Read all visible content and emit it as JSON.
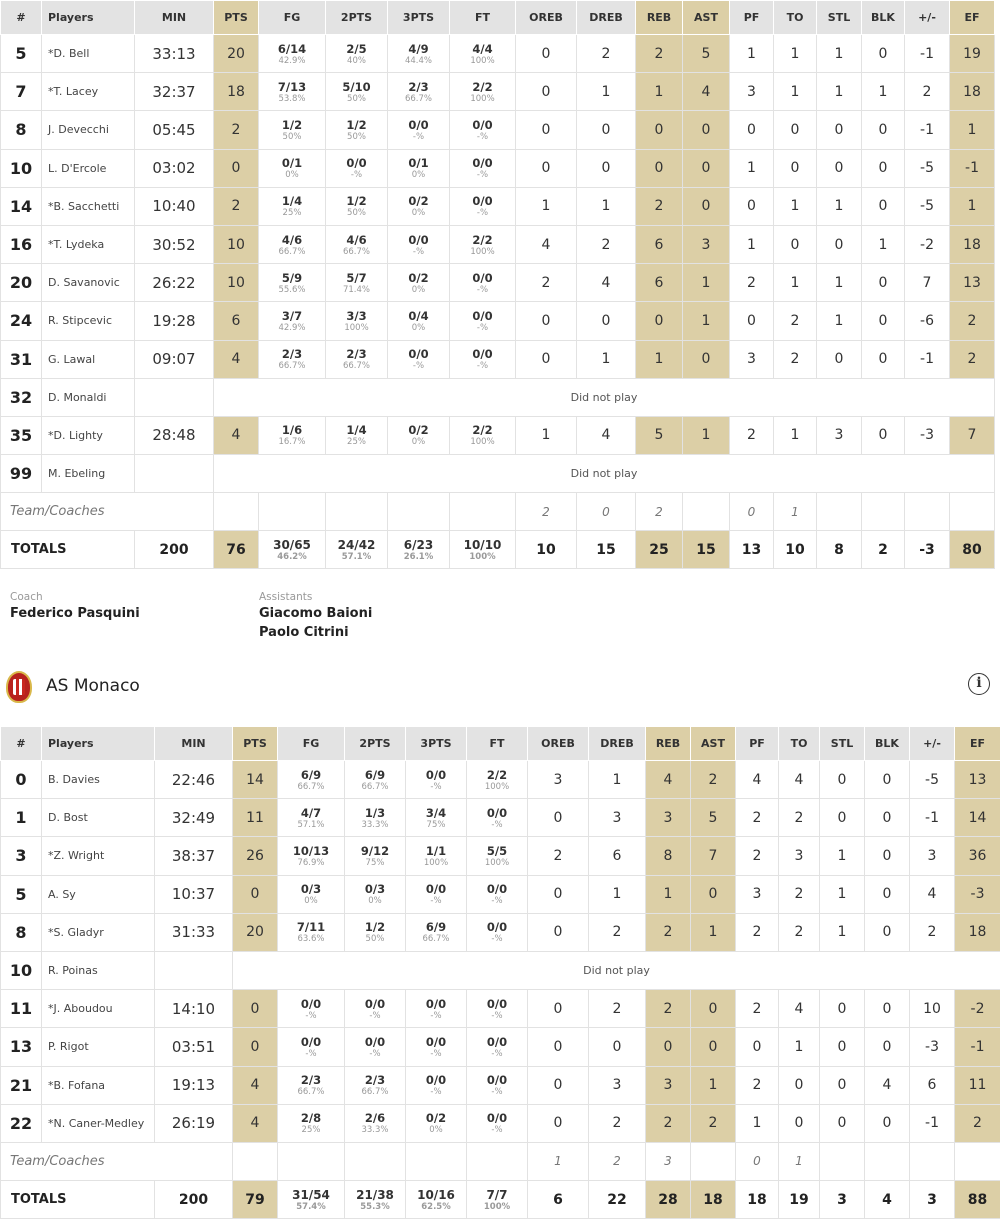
{
  "headers": [
    "#",
    "Players",
    "MIN",
    "PTS",
    "FG",
    "2PTS",
    "3PTS",
    "FT",
    "OREB",
    "DREB",
    "REB",
    "AST",
    "PF",
    "TO",
    "STL",
    "BLK",
    "+/-",
    "EF"
  ],
  "team1": {
    "players": [
      {
        "no": "5",
        "name": "*D. Bell",
        "min": "33:13",
        "pts": "20",
        "fg": [
          "6/14",
          "42.9%"
        ],
        "two": [
          "2/5",
          "40%"
        ],
        "three": [
          "4/9",
          "44.4%"
        ],
        "ft": [
          "4/4",
          "100%"
        ],
        "oreb": "0",
        "dreb": "2",
        "reb": "2",
        "ast": "5",
        "pf": "1",
        "to": "1",
        "stl": "1",
        "blk": "0",
        "pm": "-1",
        "ef": "19"
      },
      {
        "no": "7",
        "name": "*T. Lacey",
        "min": "32:37",
        "pts": "18",
        "fg": [
          "7/13",
          "53.8%"
        ],
        "two": [
          "5/10",
          "50%"
        ],
        "three": [
          "2/3",
          "66.7%"
        ],
        "ft": [
          "2/2",
          "100%"
        ],
        "oreb": "0",
        "dreb": "1",
        "reb": "1",
        "ast": "4",
        "pf": "3",
        "to": "1",
        "stl": "1",
        "blk": "1",
        "pm": "2",
        "ef": "18"
      },
      {
        "no": "8",
        "name": "J. Devecchi",
        "min": "05:45",
        "pts": "2",
        "fg": [
          "1/2",
          "50%"
        ],
        "two": [
          "1/2",
          "50%"
        ],
        "three": [
          "0/0",
          "-%"
        ],
        "ft": [
          "0/0",
          "-%"
        ],
        "oreb": "0",
        "dreb": "0",
        "reb": "0",
        "ast": "0",
        "pf": "0",
        "to": "0",
        "stl": "0",
        "blk": "0",
        "pm": "-1",
        "ef": "1"
      },
      {
        "no": "10",
        "name": "L. D'Ercole",
        "min": "03:02",
        "pts": "0",
        "fg": [
          "0/1",
          "0%"
        ],
        "two": [
          "0/0",
          "-%"
        ],
        "three": [
          "0/1",
          "0%"
        ],
        "ft": [
          "0/0",
          "-%"
        ],
        "oreb": "0",
        "dreb": "0",
        "reb": "0",
        "ast": "0",
        "pf": "1",
        "to": "0",
        "stl": "0",
        "blk": "0",
        "pm": "-5",
        "ef": "-1"
      },
      {
        "no": "14",
        "name": "*B. Sacchetti",
        "min": "10:40",
        "pts": "2",
        "fg": [
          "1/4",
          "25%"
        ],
        "two": [
          "1/2",
          "50%"
        ],
        "three": [
          "0/2",
          "0%"
        ],
        "ft": [
          "0/0",
          "-%"
        ],
        "oreb": "1",
        "dreb": "1",
        "reb": "2",
        "ast": "0",
        "pf": "0",
        "to": "1",
        "stl": "1",
        "blk": "0",
        "pm": "-5",
        "ef": "1"
      },
      {
        "no": "16",
        "name": "*T. Lydeka",
        "min": "30:52",
        "pts": "10",
        "fg": [
          "4/6",
          "66.7%"
        ],
        "two": [
          "4/6",
          "66.7%"
        ],
        "three": [
          "0/0",
          "-%"
        ],
        "ft": [
          "2/2",
          "100%"
        ],
        "oreb": "4",
        "dreb": "2",
        "reb": "6",
        "ast": "3",
        "pf": "1",
        "to": "0",
        "stl": "0",
        "blk": "1",
        "pm": "-2",
        "ef": "18"
      },
      {
        "no": "20",
        "name": "D. Savanovic",
        "min": "26:22",
        "pts": "10",
        "fg": [
          "5/9",
          "55.6%"
        ],
        "two": [
          "5/7",
          "71.4%"
        ],
        "three": [
          "0/2",
          "0%"
        ],
        "ft": [
          "0/0",
          "-%"
        ],
        "oreb": "2",
        "dreb": "4",
        "reb": "6",
        "ast": "1",
        "pf": "2",
        "to": "1",
        "stl": "1",
        "blk": "0",
        "pm": "7",
        "ef": "13"
      },
      {
        "no": "24",
        "name": "R. Stipcevic",
        "min": "19:28",
        "pts": "6",
        "fg": [
          "3/7",
          "42.9%"
        ],
        "two": [
          "3/3",
          "100%"
        ],
        "three": [
          "0/4",
          "0%"
        ],
        "ft": [
          "0/0",
          "-%"
        ],
        "oreb": "0",
        "dreb": "0",
        "reb": "0",
        "ast": "1",
        "pf": "0",
        "to": "2",
        "stl": "1",
        "blk": "0",
        "pm": "-6",
        "ef": "2"
      },
      {
        "no": "31",
        "name": "G. Lawal",
        "min": "09:07",
        "pts": "4",
        "fg": [
          "2/3",
          "66.7%"
        ],
        "two": [
          "2/3",
          "66.7%"
        ],
        "three": [
          "0/0",
          "-%"
        ],
        "ft": [
          "0/0",
          "-%"
        ],
        "oreb": "0",
        "dreb": "1",
        "reb": "1",
        "ast": "0",
        "pf": "3",
        "to": "2",
        "stl": "0",
        "blk": "0",
        "pm": "-1",
        "ef": "2"
      },
      {
        "no": "32",
        "name": "D. Monaldi",
        "dnp": "Did not play"
      },
      {
        "no": "35",
        "name": "*D. Lighty",
        "min": "28:48",
        "pts": "4",
        "fg": [
          "1/6",
          "16.7%"
        ],
        "two": [
          "1/4",
          "25%"
        ],
        "three": [
          "0/2",
          "0%"
        ],
        "ft": [
          "2/2",
          "100%"
        ],
        "oreb": "1",
        "dreb": "4",
        "reb": "5",
        "ast": "1",
        "pf": "2",
        "to": "1",
        "stl": "3",
        "blk": "0",
        "pm": "-3",
        "ef": "7"
      },
      {
        "no": "99",
        "name": "M. Ebeling",
        "dnp": "Did not play"
      }
    ],
    "team_row": {
      "label": "Team/Coaches",
      "oreb": "2",
      "dreb": "0",
      "reb": "2",
      "ast": "",
      "pf": "0",
      "to": "1"
    },
    "totals": {
      "label": "TOTALS",
      "min": "200",
      "pts": "76",
      "fg": [
        "30/65",
        "46.2%"
      ],
      "two": [
        "24/42",
        "57.1%"
      ],
      "three": [
        "6/23",
        "26.1%"
      ],
      "ft": [
        "10/10",
        "100%"
      ],
      "oreb": "10",
      "dreb": "15",
      "reb": "25",
      "ast": "15",
      "pf": "13",
      "to": "10",
      "stl": "8",
      "blk": "2",
      "pm": "-3",
      "ef": "80"
    }
  },
  "coaches": {
    "coach_label": "Coach",
    "coach_name": "Federico Pasquini",
    "assistants_label": "Assistants",
    "assistant_1": "Giacomo Baioni",
    "assistant_2": "Paolo Citrini"
  },
  "team2_header": {
    "name": "AS Monaco",
    "info_icon": "i"
  },
  "team2": {
    "players": [
      {
        "no": "0",
        "name": "B. Davies",
        "min": "22:46",
        "pts": "14",
        "fg": [
          "6/9",
          "66.7%"
        ],
        "two": [
          "6/9",
          "66.7%"
        ],
        "three": [
          "0/0",
          "-%"
        ],
        "ft": [
          "2/2",
          "100%"
        ],
        "oreb": "3",
        "dreb": "1",
        "reb": "4",
        "ast": "2",
        "pf": "4",
        "to": "4",
        "stl": "0",
        "blk": "0",
        "pm": "-5",
        "ef": "13"
      },
      {
        "no": "1",
        "name": "D. Bost",
        "min": "32:49",
        "pts": "11",
        "fg": [
          "4/7",
          "57.1%"
        ],
        "two": [
          "1/3",
          "33.3%"
        ],
        "three": [
          "3/4",
          "75%"
        ],
        "ft": [
          "0/0",
          "-%"
        ],
        "oreb": "0",
        "dreb": "3",
        "reb": "3",
        "ast": "5",
        "pf": "2",
        "to": "2",
        "stl": "0",
        "blk": "0",
        "pm": "-1",
        "ef": "14"
      },
      {
        "no": "3",
        "name": "*Z. Wright",
        "min": "38:37",
        "pts": "26",
        "fg": [
          "10/13",
          "76.9%"
        ],
        "two": [
          "9/12",
          "75%"
        ],
        "three": [
          "1/1",
          "100%"
        ],
        "ft": [
          "5/5",
          "100%"
        ],
        "oreb": "2",
        "dreb": "6",
        "reb": "8",
        "ast": "7",
        "pf": "2",
        "to": "3",
        "stl": "1",
        "blk": "0",
        "pm": "3",
        "ef": "36"
      },
      {
        "no": "5",
        "name": "A. Sy",
        "min": "10:37",
        "pts": "0",
        "fg": [
          "0/3",
          "0%"
        ],
        "two": [
          "0/3",
          "0%"
        ],
        "three": [
          "0/0",
          "-%"
        ],
        "ft": [
          "0/0",
          "-%"
        ],
        "oreb": "0",
        "dreb": "1",
        "reb": "1",
        "ast": "0",
        "pf": "3",
        "to": "2",
        "stl": "1",
        "blk": "0",
        "pm": "4",
        "ef": "-3"
      },
      {
        "no": "8",
        "name": "*S. Gladyr",
        "min": "31:33",
        "pts": "20",
        "fg": [
          "7/11",
          "63.6%"
        ],
        "two": [
          "1/2",
          "50%"
        ],
        "three": [
          "6/9",
          "66.7%"
        ],
        "ft": [
          "0/0",
          "-%"
        ],
        "oreb": "0",
        "dreb": "2",
        "reb": "2",
        "ast": "1",
        "pf": "2",
        "to": "2",
        "stl": "1",
        "blk": "0",
        "pm": "2",
        "ef": "18"
      },
      {
        "no": "10",
        "name": "R. Poinas",
        "dnp": "Did not play"
      },
      {
        "no": "11",
        "name": "*J. Aboudou",
        "min": "14:10",
        "pts": "0",
        "fg": [
          "0/0",
          "-%"
        ],
        "two": [
          "0/0",
          "-%"
        ],
        "three": [
          "0/0",
          "-%"
        ],
        "ft": [
          "0/0",
          "-%"
        ],
        "oreb": "0",
        "dreb": "2",
        "reb": "2",
        "ast": "0",
        "pf": "2",
        "to": "4",
        "stl": "0",
        "blk": "0",
        "pm": "10",
        "ef": "-2"
      },
      {
        "no": "13",
        "name": "P. Rigot",
        "min": "03:51",
        "pts": "0",
        "fg": [
          "0/0",
          "-%"
        ],
        "two": [
          "0/0",
          "-%"
        ],
        "three": [
          "0/0",
          "-%"
        ],
        "ft": [
          "0/0",
          "-%"
        ],
        "oreb": "0",
        "dreb": "0",
        "reb": "0",
        "ast": "0",
        "pf": "0",
        "to": "1",
        "stl": "0",
        "blk": "0",
        "pm": "-3",
        "ef": "-1"
      },
      {
        "no": "21",
        "name": "*B. Fofana",
        "min": "19:13",
        "pts": "4",
        "fg": [
          "2/3",
          "66.7%"
        ],
        "two": [
          "2/3",
          "66.7%"
        ],
        "three": [
          "0/0",
          "-%"
        ],
        "ft": [
          "0/0",
          "-%"
        ],
        "oreb": "0",
        "dreb": "3",
        "reb": "3",
        "ast": "1",
        "pf": "2",
        "to": "0",
        "stl": "0",
        "blk": "4",
        "pm": "6",
        "ef": "11"
      },
      {
        "no": "22",
        "name": "*N. Caner-Medley",
        "min": "26:19",
        "pts": "4",
        "fg": [
          "2/8",
          "25%"
        ],
        "two": [
          "2/6",
          "33.3%"
        ],
        "three": [
          "0/2",
          "0%"
        ],
        "ft": [
          "0/0",
          "-%"
        ],
        "oreb": "0",
        "dreb": "2",
        "reb": "2",
        "ast": "2",
        "pf": "1",
        "to": "0",
        "stl": "0",
        "blk": "0",
        "pm": "-1",
        "ef": "2"
      }
    ],
    "team_row": {
      "label": "Team/Coaches",
      "oreb": "1",
      "dreb": "2",
      "reb": "3",
      "ast": "",
      "pf": "0",
      "to": "1"
    },
    "totals": {
      "label": "TOTALS",
      "min": "200",
      "pts": "79",
      "fg": [
        "31/54",
        "57.4%"
      ],
      "two": [
        "21/38",
        "55.3%"
      ],
      "three": [
        "10/16",
        "62.5%"
      ],
      "ft": [
        "7/7",
        "100%"
      ],
      "oreb": "6",
      "dreb": "22",
      "reb": "28",
      "ast": "18",
      "pf": "18",
      "to": "19",
      "stl": "3",
      "blk": "4",
      "pm": "3",
      "ef": "88"
    }
  },
  "colors": {
    "accent_gold": "#dccfa6",
    "header_gray": "#e3e3e3"
  }
}
